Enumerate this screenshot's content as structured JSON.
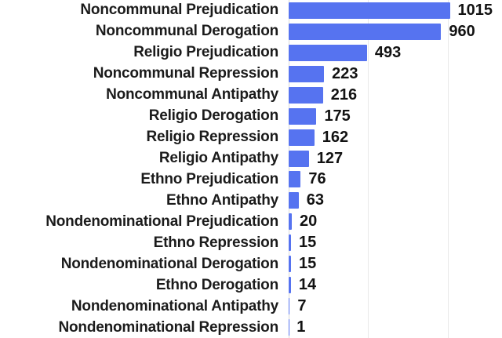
{
  "chart_data": {
    "type": "bar",
    "orientation": "horizontal",
    "title": "",
    "xlabel": "",
    "ylabel": "",
    "categories": [
      "Noncommunal Prejudication",
      "Noncommunal Derogation",
      "Religio Prejudication",
      "Noncommunal Repression",
      "Noncommunal Antipathy",
      "Religio Derogation",
      "Religio Repression",
      "Religio Antipathy",
      "Ethno Prejudication",
      "Ethno Antipathy",
      "Nondenominational Prejudication",
      "Ethno Repression",
      "Nondenominational Derogation",
      "Ethno Derogation",
      "Nondenominational Antipathy",
      "Nondenominational Repression"
    ],
    "values": [
      1015,
      960,
      493,
      223,
      216,
      175,
      162,
      127,
      76,
      63,
      20,
      15,
      15,
      14,
      7,
      1
    ],
    "value_labels_shown": true,
    "xlim": [
      0,
      1330
    ],
    "x_gridlines": [
      0,
      500,
      1000
    ],
    "grid": true,
    "legend": false,
    "colors": {
      "bar": "#5673f0",
      "category_text": "#1b1b1b",
      "value_text": "#121212",
      "gridline": "#e9e9e9",
      "axis_line": "#d9d9d9",
      "background": "#ffffff"
    }
  }
}
